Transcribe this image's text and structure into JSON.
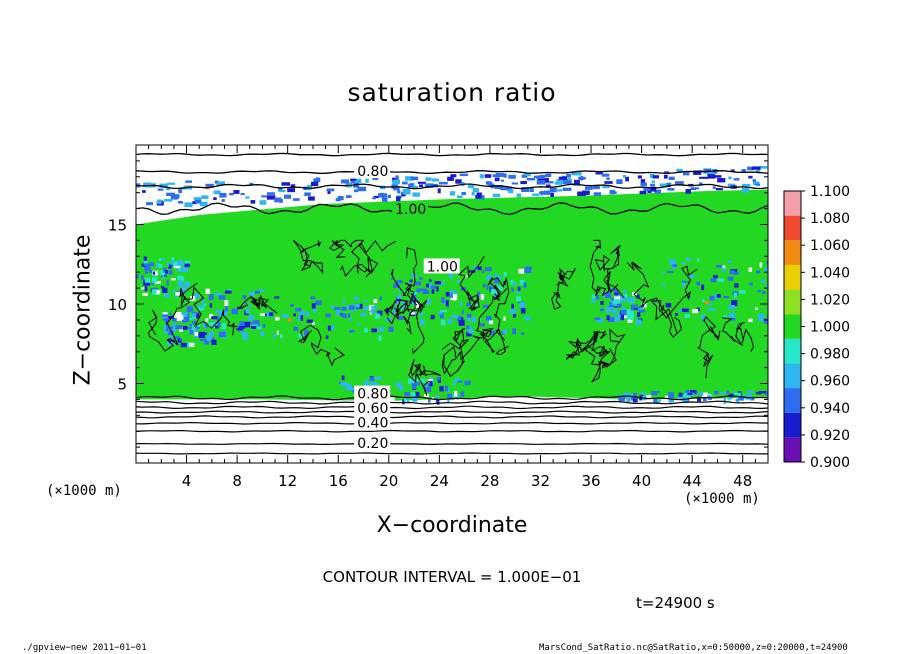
{
  "chart_data": {
    "type": "heatmap",
    "title": "saturation ratio",
    "xlabel": "X−coordinate",
    "ylabel": "Z−coordinate",
    "x_unit_label": "(×1000 m)",
    "y_unit_label": "(×1000 m)",
    "xlim": [
      0,
      50
    ],
    "ylim": [
      0,
      20
    ],
    "x_ticks": [
      4,
      8,
      12,
      16,
      20,
      24,
      28,
      32,
      36,
      40,
      44,
      48
    ],
    "y_ticks": [
      5,
      10,
      15
    ],
    "colorbar": {
      "levels": [
        0.9,
        0.92,
        0.94,
        0.96,
        0.98,
        1.0,
        1.02,
        1.04,
        1.06,
        1.08,
        1.1
      ],
      "labels": [
        "0.900",
        "0.920",
        "0.940",
        "0.960",
        "0.980",
        "1.000",
        "1.020",
        "1.040",
        "1.060",
        "1.080",
        "1.100"
      ],
      "colors": [
        "#6a0fb4",
        "#1a1ad0",
        "#2f6df0",
        "#2fb6f0",
        "#26e8c8",
        "#22d822",
        "#8ee020",
        "#e8d000",
        "#f08a10",
        "#f04a30",
        "#f4a0a8"
      ]
    },
    "contour_labels": [
      {
        "text": "0.80",
        "x": 17.5,
        "y": 18.3
      },
      {
        "text": "1.00",
        "x": 20.5,
        "y": 15.9
      },
      {
        "text": "1.00",
        "x": 23.0,
        "y": 12.3
      },
      {
        "text": "0.80",
        "x": 17.5,
        "y": 4.3
      },
      {
        "text": "0.60",
        "x": 17.5,
        "y": 3.4
      },
      {
        "text": "0.40",
        "x": 17.5,
        "y": 2.5
      },
      {
        "text": "0.20",
        "x": 17.5,
        "y": 1.2
      }
    ]
  },
  "contour_interval": "CONTOUR INTERVAL = 1.000E−01",
  "time_label": "t=24900 s",
  "footer_left": "./gpview−new  2011−01−01",
  "footer_right": "MarsCond_SatRatio.nc@SatRatio,x=0:50000,z=0:20000,t=24900"
}
